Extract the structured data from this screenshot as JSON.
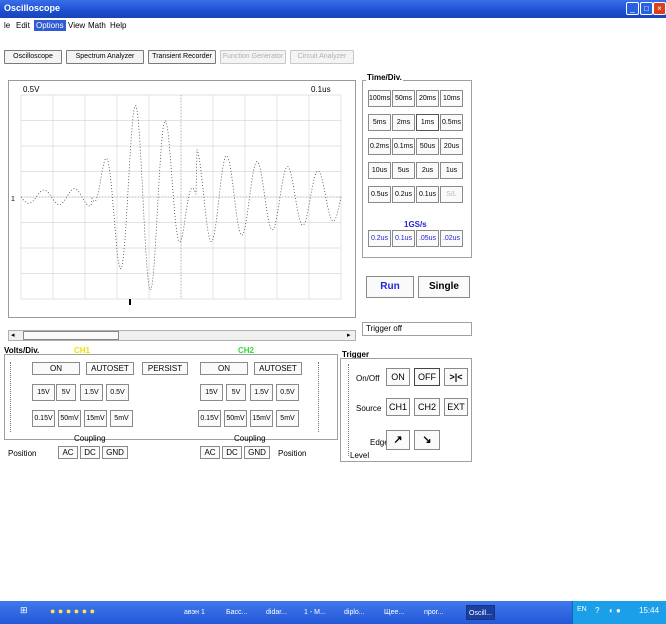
{
  "window": {
    "title": "Oscilloscope",
    "controls": [
      "_",
      "□",
      "×"
    ]
  },
  "menu": {
    "items": [
      "le",
      "Edit",
      "Options",
      "View",
      "Math",
      "Help"
    ],
    "active": "Options"
  },
  "toolbar": {
    "oscilloscope": "Oscilloscope",
    "spectrum": "Spectrum Analyzer",
    "transient": "Transient Recorder",
    "function_gen": "Function Generator",
    "circuit": "Circuit Analyzer"
  },
  "scope": {
    "volts_readout": "0.5V",
    "time_readout": "0.1us",
    "trigger_marker": "1",
    "trigger_status": "Trigger off"
  },
  "timediv": {
    "title": "Time/Div.",
    "rows": [
      [
        "100ms",
        "50ms",
        "20ms",
        "10ms"
      ],
      [
        "5ms",
        "2ms",
        "1ms",
        "0.5ms"
      ],
      [
        "0.2ms",
        "0.1ms",
        "50us",
        "20us"
      ],
      [
        "10us",
        "5us",
        "2us",
        "1us"
      ],
      [
        "0.5us",
        "0.2us",
        "0.1us",
        "S/L"
      ]
    ],
    "rate_label": "1GS/s",
    "fast_row": [
      "0.2us",
      "0.1us",
      ".05us",
      ".02us"
    ],
    "selected": "1ms"
  },
  "run": {
    "run_label": "Run",
    "single_label": "Single"
  },
  "volts": {
    "title": "Volts/Div.",
    "ch1": {
      "label": "CH1",
      "on": "ON",
      "autoset": "AUTOSET",
      "row1": [
        "15V",
        "5V",
        "1.5V",
        "0.5V"
      ],
      "row2": [
        "0.15V",
        "50mV",
        "15mV",
        "5mV"
      ],
      "coupling": "Coupling",
      "ac": "AC",
      "dc": "DC",
      "gnd": "GND",
      "position": "Position"
    },
    "persist": "PERSIST",
    "ch2": {
      "label": "CH2",
      "on": "ON",
      "autoset": "AUTOSET",
      "row1": [
        "15V",
        "5V",
        "1.5V",
        "0.5V"
      ],
      "row2": [
        "0.15V",
        "50mV",
        "15mV",
        "5mV"
      ],
      "coupling": "Coupling",
      "ac": "AC",
      "dc": "DC",
      "gnd": "GND",
      "position": "Position"
    }
  },
  "trigger": {
    "title": "Trigger",
    "onoff_label": "On/Off",
    "on": "ON",
    "off": "OFF",
    "cross": ">|<",
    "source_label": "Source",
    "ch1": "CH1",
    "ch2": "CH2",
    "ext": "EXT",
    "edge_label": "Edge",
    "level_label": "Level"
  },
  "taskbar": {
    "items": [
      "авэн 1",
      "Басс...",
      "didar...",
      "1 - M...",
      "diplo...",
      "Щеe...",
      "npor...",
      "Oscill..."
    ],
    "active": "Oscill...",
    "lang": "EN",
    "clock": "15:44"
  },
  "colors": {
    "titlebar": "#1c4fd0",
    "ch1": "#f0e000",
    "ch2": "#36d936",
    "blue_text": "#2525d0",
    "taskbar": "#2458d8"
  }
}
